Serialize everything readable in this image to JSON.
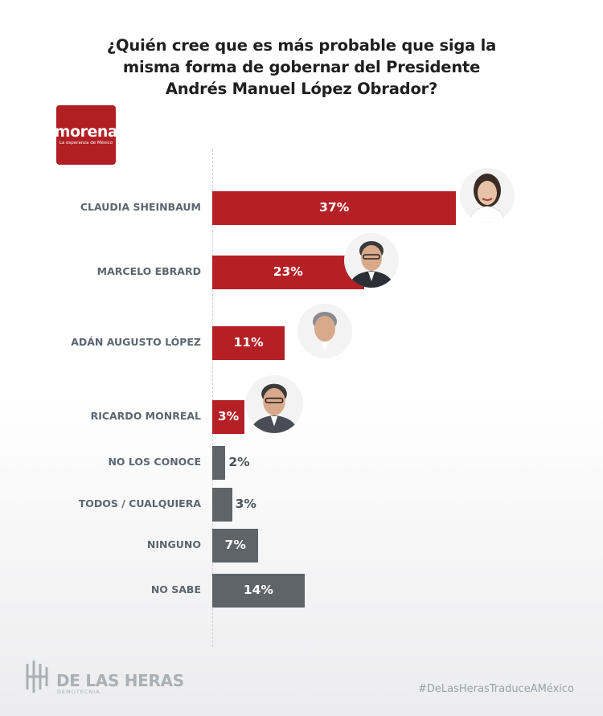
{
  "title": "¿Quién cree que es más probable que siga la\nmisma forma de gobernar del Presidente\nAndrés Manuel López Obrador?",
  "party_logo": {
    "name": "morena",
    "tagline": "La esperanza de México",
    "color": "#b11f24"
  },
  "chart_data": {
    "type": "bar",
    "orientation": "horizontal",
    "title": "¿Quién cree que es más probable que siga la misma forma de gobernar del Presidente Andrés Manuel López Obrador?",
    "xlim": [
      0,
      40
    ],
    "grid": false,
    "categories": [
      "CLAUDIA SHEINBAUM",
      "MARCELO EBRARD",
      "ADÁN AUGUSTO LÓPEZ",
      "RICARDO MONREAL",
      "NO LOS CONOCE",
      "TODOS / CUALQUIERA",
      "NINGUNO",
      "NO SABE"
    ],
    "values": [
      37,
      23,
      11,
      3,
      2,
      3,
      7,
      14
    ],
    "value_labels": [
      "37%",
      "23%",
      "11%",
      "3%",
      "2%",
      "3%",
      "7%",
      "14%"
    ],
    "bar_colors": [
      "#b42025",
      "#b42025",
      "#b42025",
      "#b42025",
      "#5e6468",
      "#5e6468",
      "#5e6468",
      "#5e6468"
    ],
    "candidate_photos": [
      "avatar-woman-icon",
      "avatar-man-icon",
      "avatar-man-icon",
      "avatar-man-icon"
    ]
  },
  "footer": {
    "brand": "DE LAS HERAS",
    "brand_sub": "DEMOTECNIA",
    "hashtag": "#DeLasHerasTraduceAMéxico"
  }
}
